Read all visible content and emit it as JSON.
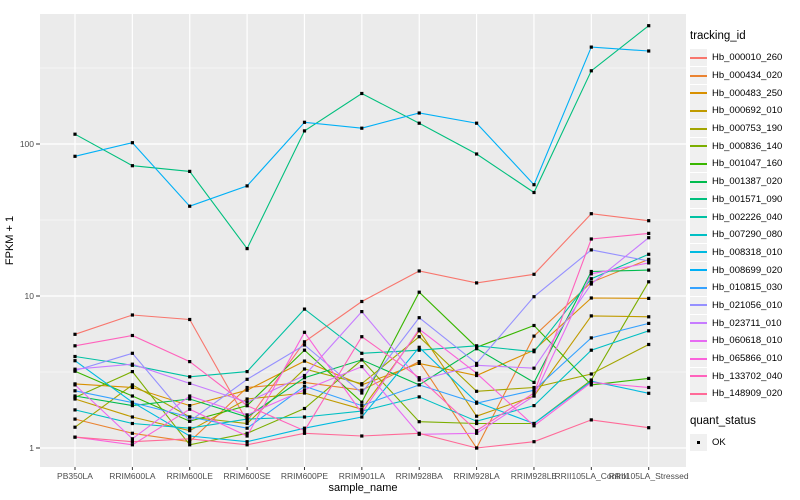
{
  "figure": {
    "background": "#FFFFFF",
    "panel_background": "#EBEBEB",
    "gridline_color": "#FFFFFF",
    "axis_text_color": "#4D4D4D",
    "axis_title_color": "#000000",
    "tick_mark_color": "#333333",
    "marker_color": "#000000"
  },
  "legend": {
    "tracking_title": "tracking_id",
    "quant_title": "quant_status",
    "quant_items": [
      {
        "label": "OK"
      }
    ]
  },
  "chart_data": {
    "type": "line",
    "title": "",
    "xlabel": "sample_name",
    "ylabel": "FPKM + 1",
    "y_scale": "log10",
    "y_ticks": [
      1,
      10,
      100
    ],
    "y_minor_ticks": [
      3.162,
      31.62,
      316.2
    ],
    "ylim": [
      0.75,
      716
    ],
    "grid": "major+minor",
    "legend_position": "right",
    "marker_shape": "filled-square",
    "categories": [
      "PB350LA",
      "RRIM600LA",
      "RRIM600LE",
      "RRIM600SE",
      "RRIM600PE",
      "RRIM901LA",
      "RRIM928BA",
      "RRIM928LA",
      "RRIM928LE",
      "RRII105LA_Control",
      "RRII105LA_Stressed"
    ],
    "series": [
      {
        "name": "Hb_000010_260",
        "color": "#F8766D",
        "values": [
          5.6,
          7.5,
          7.0,
          1.5,
          5.0,
          9.2,
          14.6,
          12.2,
          13.9,
          34.8,
          31.3
        ]
      },
      {
        "name": "Hb_000434_020",
        "color": "#EA8331",
        "values": [
          1.55,
          1.25,
          1.1,
          2.5,
          2.7,
          2.4,
          3.7,
          1.0,
          5.45,
          12.3,
          17.4
        ]
      },
      {
        "name": "Hb_000483_250",
        "color": "#D89000",
        "values": [
          2.64,
          2.5,
          1.9,
          2.4,
          3.73,
          2.6,
          3.6,
          3.0,
          4.4,
          9.7,
          9.65
        ]
      },
      {
        "name": "Hb_000692_010",
        "color": "#C09B00",
        "values": [
          2.1,
          1.6,
          1.3,
          2.1,
          2.3,
          1.8,
          5.9,
          1.62,
          2.2,
          7.4,
          7.3
        ]
      },
      {
        "name": "Hb_000753_190",
        "color": "#A3A500",
        "values": [
          1.37,
          2.6,
          1.6,
          1.45,
          3.31,
          2.65,
          5.4,
          2.36,
          2.5,
          3.07,
          4.8
        ]
      },
      {
        "name": "Hb_000836_140",
        "color": "#7CAE00",
        "values": [
          2.15,
          3.18,
          1.05,
          1.25,
          1.82,
          3.8,
          1.49,
          1.45,
          1.45,
          2.8,
          12.4
        ]
      },
      {
        "name": "Hb_001047_160",
        "color": "#39B600",
        "values": [
          3.2,
          2.2,
          1.5,
          1.9,
          4.4,
          2.0,
          10.6,
          4.6,
          6.4,
          2.6,
          2.87
        ]
      },
      {
        "name": "Hb_001387_020",
        "color": "#00BB4E",
        "values": [
          2.2,
          1.9,
          2.1,
          1.6,
          2.9,
          3.8,
          2.6,
          4.5,
          2.7,
          14.5,
          14.8
        ]
      },
      {
        "name": "Hb_001571_090",
        "color": "#00BF7D",
        "values": [
          116,
          72,
          66,
          20.5,
          122,
          215,
          137,
          86,
          48,
          303,
          600
        ]
      },
      {
        "name": "Hb_002226_040",
        "color": "#00C1A3",
        "values": [
          4.0,
          3.5,
          2.94,
          3.18,
          8.2,
          4.2,
          4.4,
          4.7,
          4.3,
          13.0,
          18.8
        ]
      },
      {
        "name": "Hb_007290_080",
        "color": "#00BFC4",
        "values": [
          1.78,
          1.45,
          1.35,
          1.55,
          1.6,
          1.75,
          2.17,
          1.5,
          1.9,
          4.4,
          5.9
        ]
      },
      {
        "name": "Hb_008318_010",
        "color": "#00BAE0",
        "values": [
          3.75,
          2.0,
          1.2,
          1.1,
          1.35,
          1.6,
          4.6,
          2.0,
          1.45,
          2.75,
          2.29
        ]
      },
      {
        "name": "Hb_008699_020",
        "color": "#00B0F6",
        "values": [
          83,
          102,
          39,
          53,
          139,
          127,
          160,
          137,
          54,
          434,
          409
        ]
      },
      {
        "name": "Hb_010815_030",
        "color": "#35A2FF",
        "values": [
          2.38,
          1.99,
          1.6,
          1.35,
          2.55,
          1.9,
          2.6,
          1.97,
          2.4,
          5.3,
          6.6
        ]
      },
      {
        "name": "Hb_021056_010",
        "color": "#9590FF",
        "values": [
          3.23,
          4.2,
          1.5,
          2.83,
          4.76,
          2.3,
          7.2,
          3.6,
          9.9,
          20.1,
          17.0
        ]
      },
      {
        "name": "Hb_023711_010",
        "color": "#C77CFF",
        "values": [
          3.3,
          3.56,
          2.66,
          2.0,
          3.0,
          7.9,
          2.8,
          3.5,
          3.35,
          12.0,
          24.2
        ]
      },
      {
        "name": "Hb_060618_010",
        "color": "#E76BF3",
        "values": [
          2.6,
          1.15,
          2.2,
          1.65,
          2.41,
          3.43,
          1.23,
          1.25,
          2.2,
          14.0,
          16.5
        ]
      },
      {
        "name": "Hb_065866_010",
        "color": "#FA62DB",
        "values": [
          1.18,
          1.05,
          1.8,
          1.2,
          5.77,
          1.7,
          6.05,
          3.1,
          1.4,
          2.7,
          2.5
        ]
      },
      {
        "name": "Hb_133702_040",
        "color": "#FF62BC",
        "values": [
          4.7,
          5.5,
          3.7,
          1.9,
          1.3,
          5.4,
          2.9,
          1.3,
          2.3,
          23.7,
          25.8
        ]
      },
      {
        "name": "Hb_148909_020",
        "color": "#FF6A98",
        "values": [
          1.18,
          1.1,
          1.15,
          1.05,
          1.25,
          1.2,
          1.25,
          1.0,
          1.1,
          1.53,
          1.36
        ]
      }
    ]
  }
}
